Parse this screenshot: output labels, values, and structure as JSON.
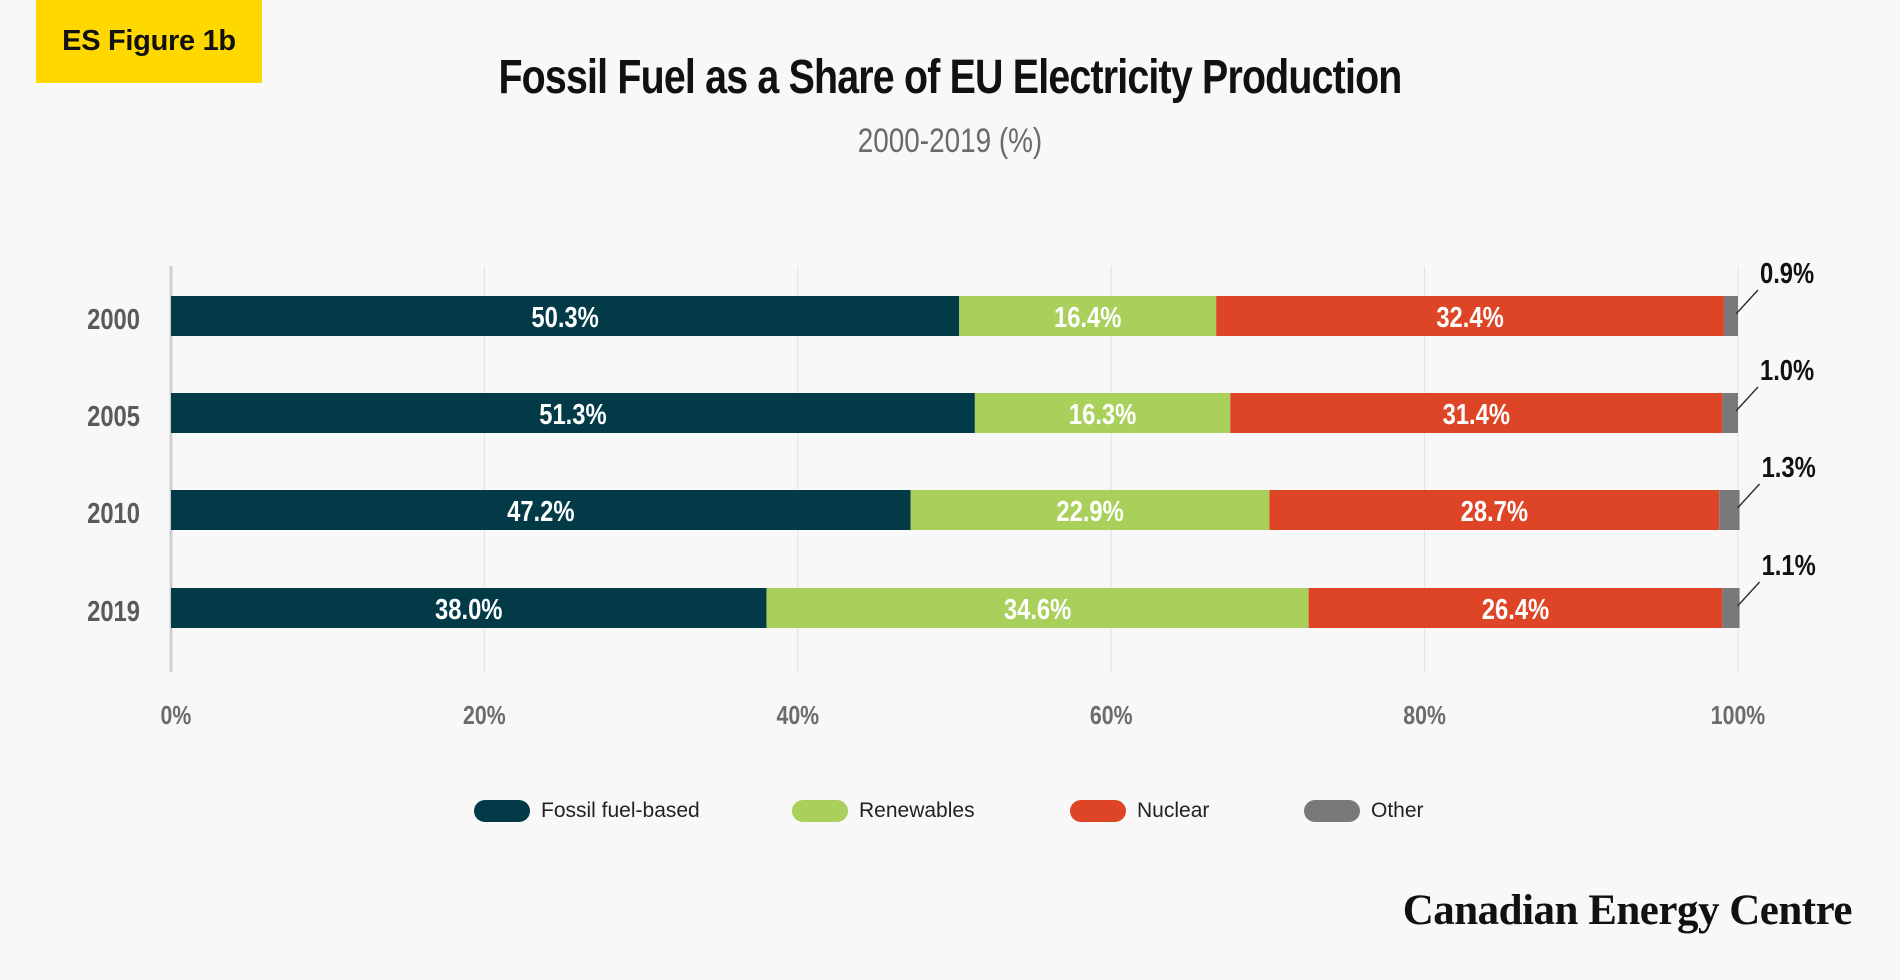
{
  "figure_label": "ES Figure 1b",
  "brand": "Canadian Energy Centre",
  "colors": {
    "background": "#f8f8f8",
    "label_bg": "#ffd800",
    "fossil": "#023a47",
    "renewables": "#a8d05a",
    "nuclear": "#de4527",
    "other": "#79797b"
  },
  "legend": [
    {
      "label": "Fossil fuel-based",
      "color": "#023a47"
    },
    {
      "label": "Renewables",
      "color": "#a8d05a"
    },
    {
      "label": "Nuclear",
      "color": "#de4527"
    },
    {
      "label": "Other",
      "color": "#79797b"
    }
  ],
  "chart_data": {
    "type": "bar",
    "orientation": "horizontal",
    "stacked": true,
    "title": "Fossil Fuel as a Share of EU Electricity Production",
    "subtitle": "2000-2019 (%)",
    "categories": [
      "2000",
      "2005",
      "2010",
      "2019"
    ],
    "series": [
      {
        "name": "Fossil fuel-based",
        "values": [
          50.3,
          51.3,
          47.2,
          38.0
        ],
        "labels": [
          "50.3%",
          "51.3%",
          "47.2%",
          "38.0%"
        ]
      },
      {
        "name": "Renewables",
        "values": [
          16.4,
          16.3,
          22.9,
          34.6
        ],
        "labels": [
          "16.4%",
          "16.3%",
          "22.9%",
          "34.6%"
        ]
      },
      {
        "name": "Nuclear",
        "values": [
          32.4,
          31.4,
          28.7,
          26.4
        ],
        "labels": [
          "32.4%",
          "31.4%",
          "28.7%",
          "26.4%"
        ]
      },
      {
        "name": "Other",
        "values": [
          0.9,
          1.0,
          1.3,
          1.1
        ],
        "labels": [
          "0.9%",
          "1.0%",
          "1.3%",
          "1.1%"
        ]
      }
    ],
    "x_ticks": [
      "0%",
      "20%",
      "40%",
      "60%",
      "80%",
      "100%"
    ],
    "xlim": [
      0,
      100
    ],
    "grid": true,
    "legend_position": "bottom"
  }
}
